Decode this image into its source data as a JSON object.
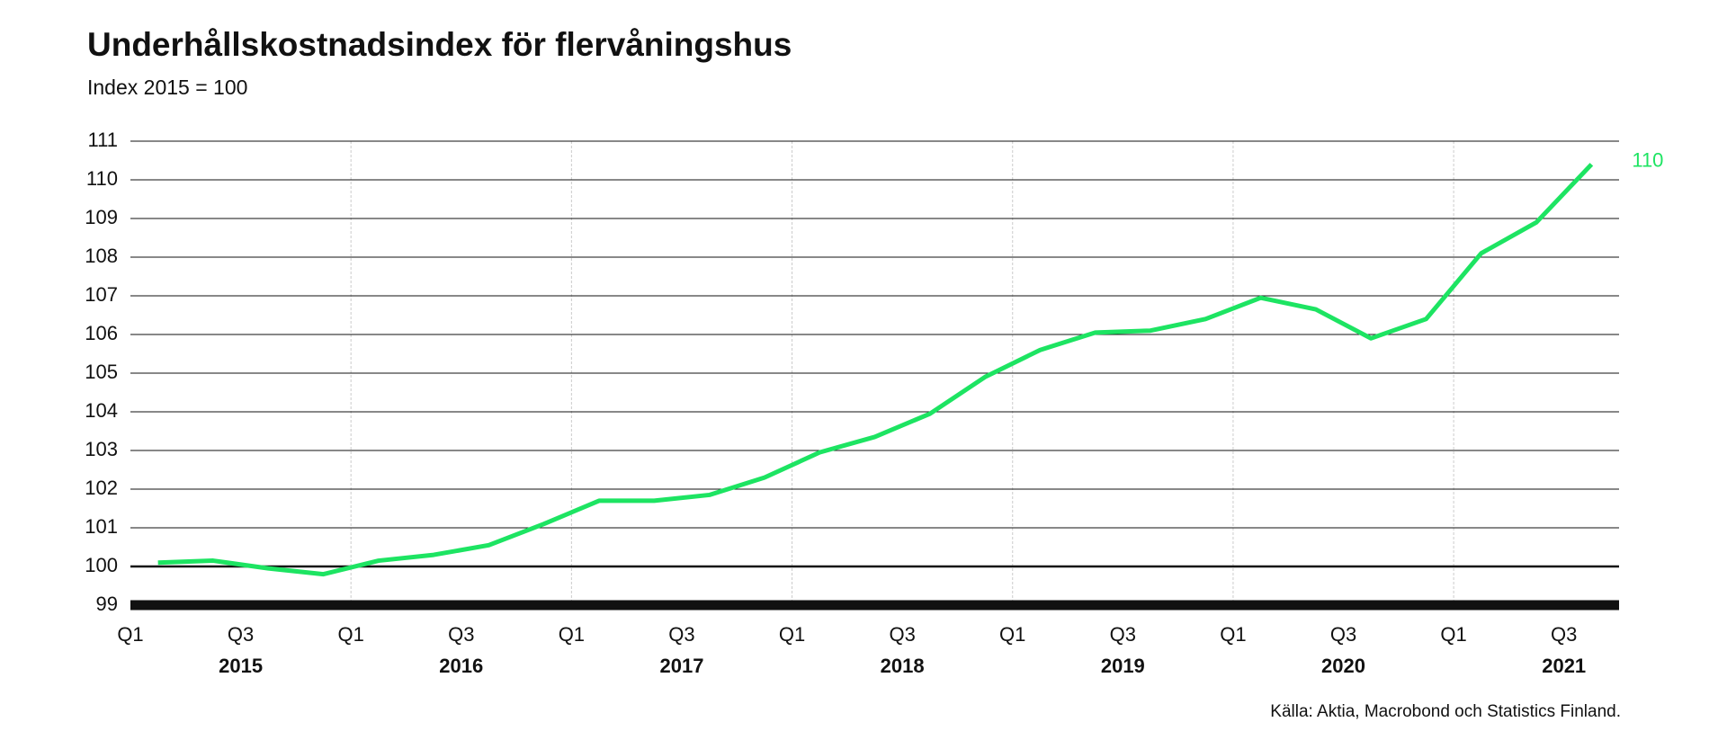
{
  "chart_data": {
    "type": "line",
    "title": "Underhållskostnadsindex för flervåningshus",
    "subtitle": "Index 2015 = 100",
    "source": "Källa: Aktia, Macrobond och Statistics Finland.",
    "categories": [
      "Q1",
      null,
      "Q3",
      null,
      "Q1",
      null,
      "Q3",
      null,
      "Q1",
      null,
      "Q3",
      null,
      "Q1",
      null,
      "Q3",
      null,
      "Q1",
      null,
      "Q3",
      null,
      "Q1",
      null,
      "Q3",
      null,
      "Q1",
      null,
      "Q3"
    ],
    "years": [
      "2015",
      "2016",
      "2017",
      "2018",
      "2019",
      "2020",
      "2021"
    ],
    "series": [
      {
        "name": "Underhållskostnadsindex",
        "color": "#1de462",
        "values": [
          100.1,
          100.15,
          99.95,
          99.8,
          100.15,
          100.3,
          100.55,
          101.1,
          101.7,
          101.7,
          101.85,
          102.3,
          102.95,
          103.35,
          103.95,
          104.9,
          105.6,
          106.05,
          106.1,
          106.4,
          106.95,
          106.65,
          105.9,
          106.4,
          108.1,
          108.9,
          110.4
        ],
        "value_labels": [
          null,
          null,
          null,
          null,
          null,
          null,
          null,
          null,
          null,
          null,
          null,
          null,
          null,
          null,
          null,
          null,
          null,
          null,
          null,
          null,
          null,
          null,
          null,
          null,
          null,
          null,
          "110"
        ]
      }
    ],
    "reference": 100,
    "ylim": [
      99,
      111
    ],
    "yticks": [
      99,
      100,
      101,
      102,
      103,
      104,
      105,
      106,
      107,
      108,
      109,
      110,
      111
    ],
    "grid": true
  }
}
